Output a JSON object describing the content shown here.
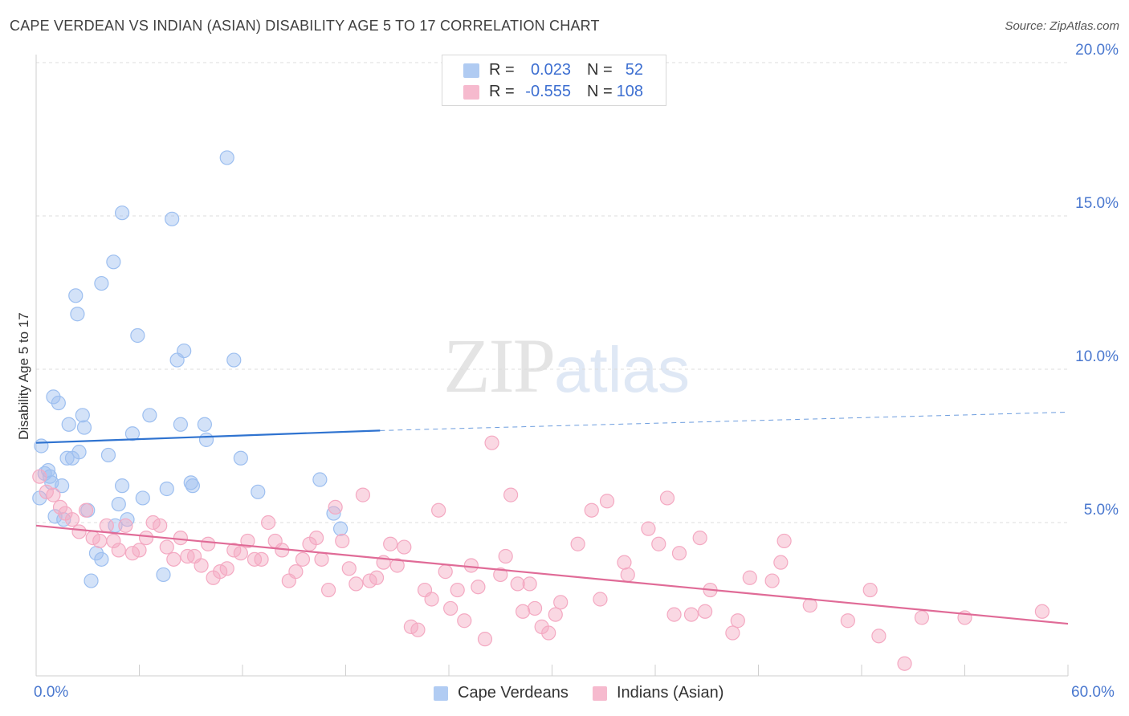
{
  "title": "CAPE VERDEAN VS INDIAN (ASIAN) DISABILITY AGE 5 TO 17 CORRELATION CHART",
  "source": "Source: ZipAtlas.com",
  "watermark": {
    "zip": "ZIP",
    "atlas": "atlas"
  },
  "legend": {
    "rows": [
      {
        "r_label": "R =",
        "r_value": "0.023",
        "n_label": "N =",
        "n_value": "52",
        "color": "#9dbff0"
      },
      {
        "r_label": "R =",
        "r_value": "-0.555",
        "n_label": "N =",
        "n_value": "108",
        "color": "#f4a9c2"
      }
    ]
  },
  "bottom_legend": [
    {
      "label": "Cape Verdeans",
      "color": "#9dbff0"
    },
    {
      "label": "Indians (Asian)",
      "color": "#f4a9c2"
    }
  ],
  "x_axis": {
    "min_label": "0.0%",
    "max_label": "60.0%"
  },
  "y_axis": {
    "label": "Disability Age 5 to 17",
    "ticks": [
      "5.0%",
      "10.0%",
      "15.0%",
      "20.0%"
    ]
  },
  "chart_data": {
    "type": "scatter",
    "title": "CAPE VERDEAN VS INDIAN (ASIAN) DISABILITY AGE 5 TO 17 CORRELATION CHART",
    "xlabel": "",
    "ylabel": "Disability Age 5 to 17",
    "xlim": [
      0,
      60
    ],
    "ylim": [
      0,
      20
    ],
    "y_ticks": [
      5,
      10,
      15,
      20
    ],
    "grid": true,
    "legend_placement": "top-center",
    "series": [
      {
        "name": "Cape Verdeans",
        "color": "#9dbff0",
        "trend_color": "#2f73d0",
        "r": 0.023,
        "n": 52,
        "trend": {
          "x0": 0,
          "y0": 7.6,
          "x_solid_end": 20,
          "y_solid_end": 8.0,
          "x1": 60,
          "y1": 8.6
        },
        "points": [
          [
            0.2,
            5.8
          ],
          [
            0.3,
            7.5
          ],
          [
            0.5,
            6.6
          ],
          [
            0.7,
            6.7
          ],
          [
            0.9,
            6.3
          ],
          [
            1.0,
            9.1
          ],
          [
            1.1,
            5.2
          ],
          [
            1.3,
            8.9
          ],
          [
            1.5,
            6.2
          ],
          [
            1.6,
            5.1
          ],
          [
            1.8,
            7.1
          ],
          [
            1.9,
            8.2
          ],
          [
            2.1,
            7.1
          ],
          [
            2.3,
            12.4
          ],
          [
            2.4,
            11.8
          ],
          [
            2.5,
            7.3
          ],
          [
            2.7,
            8.5
          ],
          [
            2.8,
            8.1
          ],
          [
            3.0,
            5.4
          ],
          [
            3.2,
            3.1
          ],
          [
            3.5,
            4.0
          ],
          [
            3.8,
            3.8
          ],
          [
            3.8,
            12.8
          ],
          [
            4.2,
            7.2
          ],
          [
            4.5,
            13.5
          ],
          [
            4.6,
            4.9
          ],
          [
            4.8,
            5.6
          ],
          [
            5.0,
            6.2
          ],
          [
            5.0,
            15.1
          ],
          [
            5.3,
            5.1
          ],
          [
            5.6,
            7.9
          ],
          [
            5.9,
            11.1
          ],
          [
            6.2,
            5.8
          ],
          [
            6.6,
            8.5
          ],
          [
            7.4,
            3.3
          ],
          [
            7.6,
            6.1
          ],
          [
            7.9,
            14.9
          ],
          [
            8.2,
            10.3
          ],
          [
            8.4,
            8.2
          ],
          [
            8.6,
            10.6
          ],
          [
            9.0,
            6.3
          ],
          [
            9.1,
            6.2
          ],
          [
            9.8,
            8.2
          ],
          [
            9.9,
            7.7
          ],
          [
            11.1,
            16.9
          ],
          [
            11.5,
            10.3
          ],
          [
            11.9,
            7.1
          ],
          [
            12.9,
            6.0
          ],
          [
            16.5,
            6.4
          ],
          [
            17.3,
            5.3
          ],
          [
            17.7,
            4.8
          ],
          [
            0.8,
            6.5
          ]
        ]
      },
      {
        "name": "Indians (Asian)",
        "color": "#f4a9c2",
        "trend_color": "#e06b97",
        "r": -0.555,
        "n": 108,
        "trend": {
          "x0": 0,
          "y0": 4.9,
          "x1": 60,
          "y1": 1.7
        },
        "points": [
          [
            0.2,
            6.5
          ],
          [
            0.6,
            6.0
          ],
          [
            1.0,
            5.9
          ],
          [
            1.4,
            5.5
          ],
          [
            1.7,
            5.3
          ],
          [
            2.1,
            5.1
          ],
          [
            2.5,
            4.7
          ],
          [
            2.9,
            5.4
          ],
          [
            3.3,
            4.5
          ],
          [
            3.7,
            4.4
          ],
          [
            4.1,
            4.9
          ],
          [
            4.5,
            4.4
          ],
          [
            4.8,
            4.1
          ],
          [
            5.2,
            4.9
          ],
          [
            5.6,
            4.0
          ],
          [
            6.0,
            4.1
          ],
          [
            6.4,
            4.5
          ],
          [
            6.8,
            5.0
          ],
          [
            7.2,
            4.9
          ],
          [
            7.6,
            4.2
          ],
          [
            8.0,
            3.8
          ],
          [
            8.4,
            4.5
          ],
          [
            8.8,
            3.9
          ],
          [
            9.2,
            3.9
          ],
          [
            9.6,
            3.6
          ],
          [
            10.0,
            4.3
          ],
          [
            10.3,
            3.2
          ],
          [
            10.7,
            3.4
          ],
          [
            11.1,
            3.5
          ],
          [
            11.5,
            4.1
          ],
          [
            11.9,
            4.0
          ],
          [
            12.3,
            4.4
          ],
          [
            12.7,
            3.8
          ],
          [
            13.1,
            3.8
          ],
          [
            13.5,
            5.0
          ],
          [
            13.9,
            4.4
          ],
          [
            14.3,
            4.1
          ],
          [
            14.7,
            3.1
          ],
          [
            15.1,
            3.4
          ],
          [
            15.5,
            3.8
          ],
          [
            15.9,
            4.3
          ],
          [
            16.3,
            4.5
          ],
          [
            16.6,
            3.8
          ],
          [
            17.0,
            2.8
          ],
          [
            17.4,
            5.5
          ],
          [
            17.8,
            4.4
          ],
          [
            18.2,
            3.5
          ],
          [
            18.6,
            3.0
          ],
          [
            19.0,
            5.9
          ],
          [
            19.4,
            3.1
          ],
          [
            19.8,
            3.2
          ],
          [
            20.2,
            3.7
          ],
          [
            20.6,
            4.3
          ],
          [
            21.0,
            3.6
          ],
          [
            21.4,
            4.2
          ],
          [
            21.8,
            1.6
          ],
          [
            22.2,
            1.5
          ],
          [
            22.6,
            2.8
          ],
          [
            23.0,
            2.5
          ],
          [
            23.4,
            5.4
          ],
          [
            23.8,
            3.4
          ],
          [
            24.1,
            2.2
          ],
          [
            24.5,
            2.8
          ],
          [
            24.9,
            1.8
          ],
          [
            25.3,
            3.6
          ],
          [
            25.7,
            2.9
          ],
          [
            26.1,
            1.2
          ],
          [
            26.5,
            7.6
          ],
          [
            27.0,
            3.3
          ],
          [
            27.3,
            3.9
          ],
          [
            27.6,
            5.9
          ],
          [
            28.0,
            3.0
          ],
          [
            28.3,
            2.1
          ],
          [
            28.7,
            3.0
          ],
          [
            29.0,
            2.2
          ],
          [
            29.4,
            1.6
          ],
          [
            29.8,
            1.4
          ],
          [
            30.2,
            2.0
          ],
          [
            30.5,
            2.4
          ],
          [
            31.5,
            4.3
          ],
          [
            32.3,
            5.4
          ],
          [
            32.8,
            2.5
          ],
          [
            33.2,
            5.7
          ],
          [
            34.2,
            3.7
          ],
          [
            34.4,
            3.3
          ],
          [
            35.6,
            4.8
          ],
          [
            36.2,
            4.3
          ],
          [
            36.7,
            5.8
          ],
          [
            37.1,
            2.0
          ],
          [
            37.4,
            4.0
          ],
          [
            38.1,
            2.0
          ],
          [
            38.6,
            4.5
          ],
          [
            38.9,
            2.1
          ],
          [
            39.2,
            2.8
          ],
          [
            40.5,
            1.4
          ],
          [
            40.8,
            1.8
          ],
          [
            41.5,
            3.2
          ],
          [
            42.8,
            3.1
          ],
          [
            43.3,
            3.7
          ],
          [
            43.5,
            4.4
          ],
          [
            45.0,
            2.3
          ],
          [
            47.2,
            1.8
          ],
          [
            48.5,
            2.8
          ],
          [
            49.0,
            1.3
          ],
          [
            50.5,
            0.4
          ],
          [
            51.5,
            1.9
          ],
          [
            54.0,
            1.9
          ],
          [
            58.5,
            2.1
          ]
        ]
      }
    ]
  }
}
